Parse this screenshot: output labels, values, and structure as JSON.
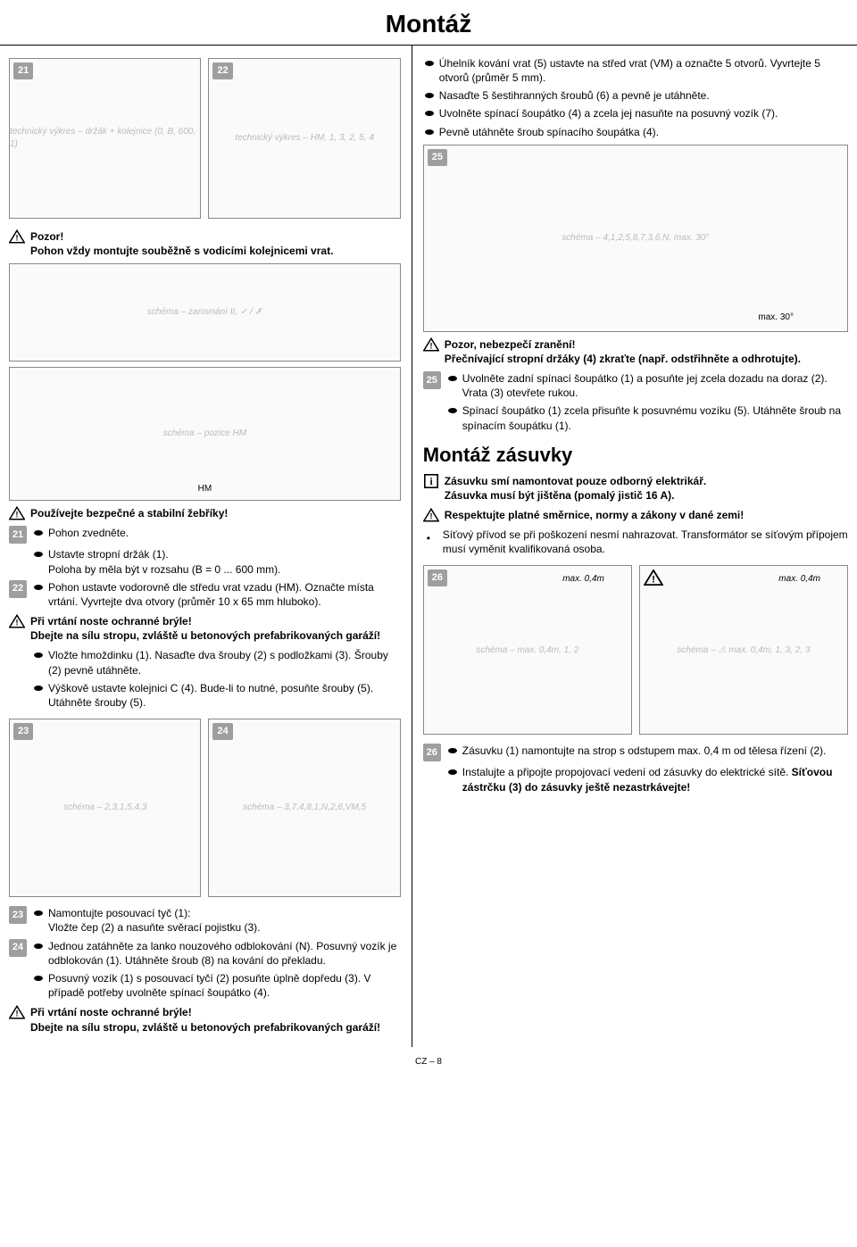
{
  "title": "Montáž",
  "footer": "CZ – 8",
  "left": {
    "fig21": {
      "num": "21",
      "label": "technický výkres – držák + kolejnice (0, B, 600, 1)"
    },
    "fig22": {
      "num": "22",
      "label": "technický výkres – HM, 1, 3, 2, 5, 4"
    },
    "warn1": "Pozor!\nPohon vždy montujte souběžně s vodicími kolejnicemi vrat.",
    "figAlign": {
      "label": "schéma – zarovnání II, ✓ / ✗"
    },
    "figHM": {
      "label": "schéma – pozice HM"
    },
    "hmLabel": "HM",
    "warn2": "Používejte bezpečné a stabilní žebříky!",
    "step21": {
      "num": "21",
      "b1": "Pohon zvedněte.",
      "b2": "Ustavte stropní držák (1).",
      "b2b": "Poloha by měla být v rozsahu (B = 0 ... 600 mm)."
    },
    "step22": {
      "num": "22",
      "b1": "Pohon ustavte vodorovně dle středu vrat vzadu (HM). Označte místa vrtání. Vyvrtejte dva otvory (průměr 10 x 65 mm hluboko)."
    },
    "warn3": "Při vrtání noste ochranné brýle!\nDbejte na sílu stropu, zvláště u betonových prefabrikovaných garáží!",
    "b_dowel": "Vložte hmoždinku (1). Nasaďte dva šrouby (2) s podložkami (3). Šrouby (2) pevně utáhněte.",
    "b_rail": "Výškově ustavte kolejnici C (4). Bude-li to nutné, posuňte šrouby (5). Utáhněte šrouby (5).",
    "fig23": {
      "num": "23",
      "label": "schéma – 2,3,1,5,4,3"
    },
    "fig24": {
      "num": "24",
      "label": "schéma – 3,7,4,8,1,N,2,6,VM,5"
    },
    "step23": {
      "num": "23",
      "b1": "Namontujte posouvací tyč (1):",
      "b1b": "Vložte čep (2) a nasuňte svěrací pojistku (3)."
    },
    "step24": {
      "num": "24",
      "b1": "Jednou zatáhněte za lanko nouzového odblokování (N). Posuvný vozík je odblokován (1). Utáhněte šroub (8) na kování do překladu.",
      "b2": "Posuvný vozík (1) s posouvací tyčí (2) posuňte úplně dopředu (3). V případě potřeby uvolněte spínací šoupátko (4)."
    },
    "warn4": "Při vrtání noste ochranné brýle!\nDbejte na sílu stropu, zvláště u betonových prefabrikovaných garáží!"
  },
  "right": {
    "intro": {
      "b1": "Úhelník kování vrat (5) ustavte na střed vrat (VM) a označte 5 otvorů. Vyvrtejte 5 otvorů (průměr 5 mm).",
      "b2": "Nasaďte 5 šestihranných šroubů (6) a pevně je utáhněte.",
      "b3": "Uvolněte spínací šoupátko (4) a zcela jej nasuňte na posuvný vozík (7).",
      "b4": "Pevně utáhněte šroub spínacího šoupátka (4)."
    },
    "fig25": {
      "num": "25",
      "label": "schéma – 4,1,2,5,8,7,3,6,N, max. 30°"
    },
    "max30": "max. 30°",
    "warn5": "Pozor, nebezpečí zranění!\nPřečnívající stropní držáky (4) zkraťte (např. odstřihněte a odhrotujte).",
    "step25": {
      "num": "25",
      "b1": "Uvolněte zadní spínací šoupátko (1) a posuňte jej zcela dozadu na doraz (2). Vrata (3) otevřete rukou.",
      "b2": "Spínací šoupátko (1) zcela přisuňte k posuvnému vozíku (5). Utáhněte šroub na spínacím šoupátku (1)."
    },
    "socketTitle": "Montáž zásuvky",
    "info1": "Zásuvku smí namontovat pouze odborný elektrikář.\nZásuvka musí být jištěna (pomalý jistič 16 A).",
    "warn6": "Respektujte platné směrnice, normy a zákony v dané zemi!",
    "b_cable": "Síťový přívod se při poškození nesmí nahrazovat. Transformátor se síťovým přípojem musí vyměnit kvalifikovaná osoba.",
    "fig26a": {
      "num": "26",
      "label": "schéma – max. 0,4m, 1, 2"
    },
    "fig26b": {
      "label": "schéma – ⚠ max. 0,4m, 1, 3, 2, 3"
    },
    "max04": "max. 0,4m",
    "step26": {
      "num": "26",
      "b1": "Zásuvku (1) namontujte na strop s odstupem max. 0,4 m od tělesa řízení (2).",
      "b2": "Instalujte a připojte propojovací vedení od zásuvky do elektrické sítě. Síťovou zástrčku (3) do zásuvky ještě nezastrkávejte!"
    }
  }
}
